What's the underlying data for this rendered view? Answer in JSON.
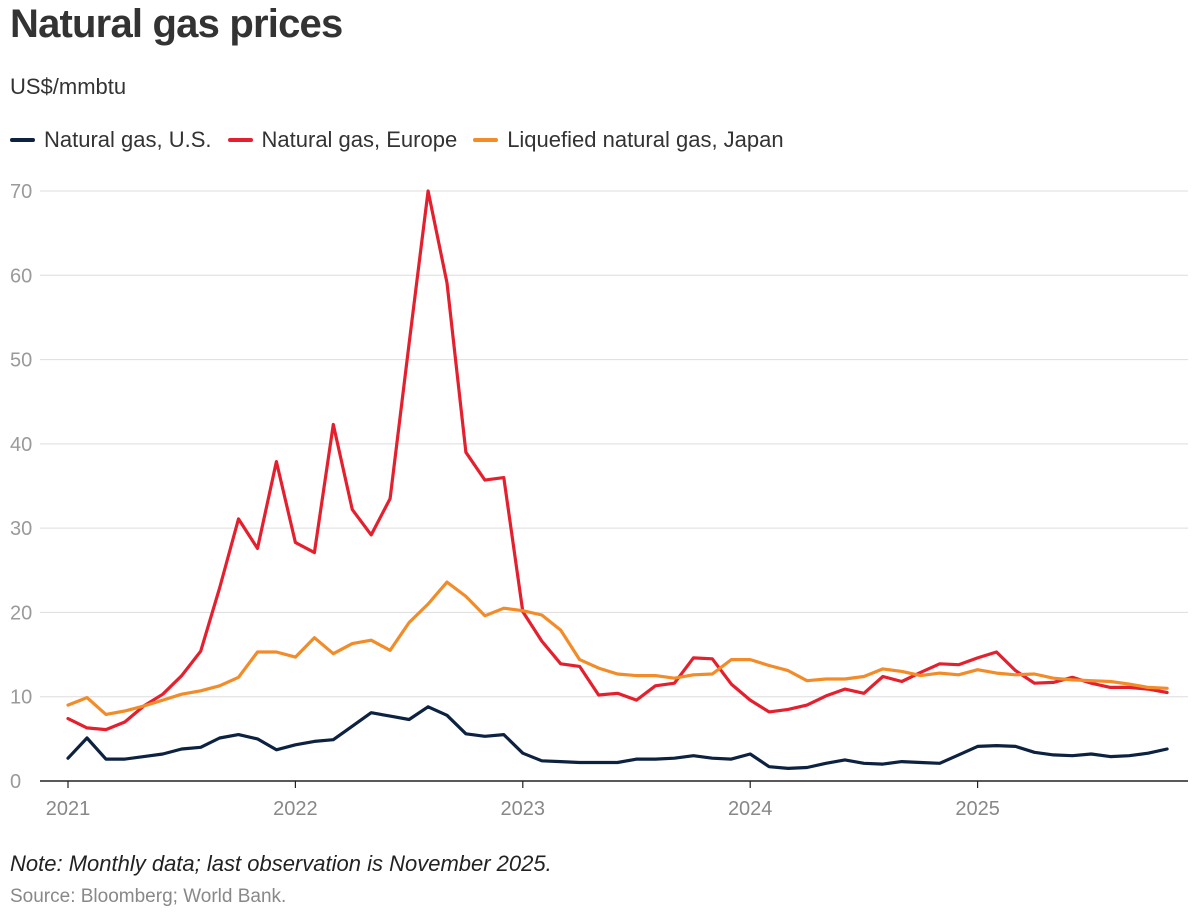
{
  "title": "Natural gas prices",
  "subtitle": "US$/mmbtu",
  "note": "Note: Monthly data; last observation is November 2025.",
  "source": "Source: Bloomberg; World Bank.",
  "legend": [
    {
      "label": "Natural gas, U.S.",
      "color": "#0d2240"
    },
    {
      "label": "Natural gas, Europe",
      "color": "#e5202e"
    },
    {
      "label": "Liquefied natural gas, Japan",
      "color": "#f28c28"
    }
  ],
  "chart_data": {
    "type": "line",
    "title": "Natural gas prices",
    "ylabel": "US$/mmbtu",
    "xlabel": "",
    "x_start": "2021-01",
    "x_end": "2025-11",
    "frequency": "monthly",
    "ylim": [
      0,
      70
    ],
    "yticks": [
      "0",
      "10",
      "20",
      "30",
      "40",
      "50",
      "60",
      "70"
    ],
    "xticks": [
      "2021",
      "2022",
      "2023",
      "2024",
      "2025"
    ],
    "grid": true,
    "legend_position": "top-left",
    "series": [
      {
        "name": "Natural gas, U.S.",
        "color": "#0d2240",
        "values": [
          2.7,
          5.1,
          2.6,
          2.6,
          2.9,
          3.2,
          3.8,
          4.0,
          5.1,
          5.5,
          5.0,
          3.7,
          4.3,
          4.7,
          4.9,
          6.5,
          8.1,
          7.7,
          7.3,
          8.8,
          7.8,
          5.6,
          5.3,
          5.5,
          3.3,
          2.4,
          2.3,
          2.2,
          2.2,
          2.2,
          2.6,
          2.6,
          2.7,
          3.0,
          2.7,
          2.6,
          3.2,
          1.7,
          1.5,
          1.6,
          2.1,
          2.5,
          2.1,
          2.0,
          2.3,
          2.2,
          2.1,
          3.1,
          4.1,
          4.2,
          4.1,
          3.4,
          3.1,
          3.0,
          3.2,
          2.9,
          3.0,
          3.3,
          3.8
        ]
      },
      {
        "name": "Natural gas, Europe",
        "color": "#e5202e",
        "values": [
          7.4,
          6.3,
          6.1,
          7.0,
          8.9,
          10.3,
          12.5,
          15.4,
          22.9,
          31.1,
          27.6,
          37.9,
          28.3,
          27.1,
          42.3,
          32.2,
          29.2,
          33.5,
          51.9,
          70.0,
          59.1,
          39.0,
          35.7,
          36.0,
          20.1,
          16.6,
          13.9,
          13.6,
          10.2,
          10.4,
          9.6,
          11.3,
          11.6,
          14.6,
          14.5,
          11.5,
          9.6,
          8.2,
          8.5,
          9.0,
          10.1,
          10.9,
          10.4,
          12.4,
          11.8,
          12.9,
          13.9,
          13.8,
          14.6,
          15.3,
          13.1,
          11.6,
          11.7,
          12.3,
          11.6,
          11.1,
          11.1,
          10.9,
          10.5
        ]
      },
      {
        "name": "Liquefied natural gas, Japan",
        "color": "#f28c28",
        "values": [
          9.0,
          9.9,
          7.9,
          8.3,
          8.9,
          9.6,
          10.3,
          10.7,
          11.3,
          12.3,
          15.3,
          15.3,
          14.7,
          17.0,
          15.1,
          16.3,
          16.7,
          15.5,
          18.8,
          21.0,
          23.6,
          21.9,
          19.6,
          20.5,
          20.2,
          19.7,
          17.9,
          14.4,
          13.4,
          12.7,
          12.5,
          12.5,
          12.2,
          12.6,
          12.7,
          14.4,
          14.4,
          13.7,
          13.1,
          11.9,
          12.1,
          12.1,
          12.4,
          13.3,
          13.0,
          12.5,
          12.8,
          12.6,
          13.2,
          12.8,
          12.6,
          12.7,
          12.2,
          12.0,
          11.9,
          11.8,
          11.5,
          11.1,
          11.0
        ]
      }
    ]
  }
}
